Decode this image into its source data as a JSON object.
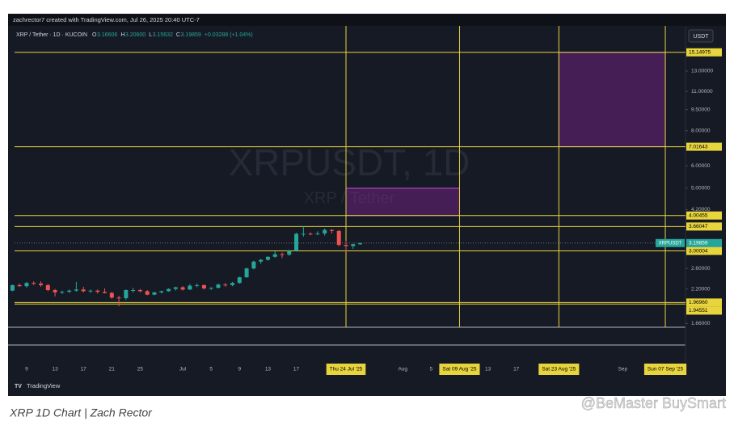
{
  "header": {
    "credit": "zachrector7 created with TradingView.com, Jul 26, 2025 20:40 UTC-7",
    "currency_button": "USDT",
    "brand": "TradingView"
  },
  "caption": "XRP 1D Chart | Zach Rector",
  "watermark": "@BeMaster BuySmart",
  "chart_data": {
    "type": "candlestick",
    "title": "XRP / Tether · 1D · KUCOIN",
    "legend_fields": [
      {
        "key": "O",
        "value": "3.16606"
      },
      {
        "key": "H",
        "value": "3.20600"
      },
      {
        "key": "L",
        "value": "3.15632"
      },
      {
        "key": "C",
        "value": "3.19859"
      }
    ],
    "change": "+0.03288 (+1.04%)",
    "background_symbol": "XRPUSDT, 1D",
    "background_name": "XRP / Tether",
    "price_tag": "XRPUSDT",
    "up_color": "#26a69a",
    "down_color": "#ef5350",
    "level_color": "#e8d43c",
    "zone_color": "#9c27b0",
    "log_scale": true,
    "grid": false,
    "x": [
      "2025-06-07",
      "2025-06-08",
      "2025-06-09",
      "2025-06-10",
      "2025-06-11",
      "2025-06-12",
      "2025-06-13",
      "2025-06-14",
      "2025-06-15",
      "2025-06-16",
      "2025-06-17",
      "2025-06-18",
      "2025-06-19",
      "2025-06-20",
      "2025-06-21",
      "2025-06-22",
      "2025-06-23",
      "2025-06-24",
      "2025-06-25",
      "2025-06-26",
      "2025-06-27",
      "2025-06-28",
      "2025-06-29",
      "2025-06-30",
      "2025-07-01",
      "2025-07-02",
      "2025-07-03",
      "2025-07-04",
      "2025-07-05",
      "2025-07-06",
      "2025-07-07",
      "2025-07-08",
      "2025-07-09",
      "2025-07-10",
      "2025-07-11",
      "2025-07-12",
      "2025-07-13",
      "2025-07-14",
      "2025-07-15",
      "2025-07-16",
      "2025-07-17",
      "2025-07-18",
      "2025-07-19",
      "2025-07-20",
      "2025-07-21",
      "2025-07-22",
      "2025-07-23",
      "2025-07-24",
      "2025-07-25",
      "2025-07-26"
    ],
    "open": [
      2.17,
      2.27,
      2.25,
      2.31,
      2.3,
      2.27,
      2.18,
      2.14,
      2.15,
      2.17,
      2.19,
      2.16,
      2.17,
      2.15,
      2.13,
      2.05,
      2.04,
      2.18,
      2.18,
      2.16,
      2.1,
      2.14,
      2.16,
      2.2,
      2.23,
      2.19,
      2.26,
      2.27,
      2.21,
      2.22,
      2.28,
      2.27,
      2.31,
      2.42,
      2.6,
      2.75,
      2.79,
      2.86,
      2.92,
      2.91,
      3.0,
      3.45,
      3.45,
      3.44,
      3.46,
      3.56,
      3.53,
      3.15,
      3.12,
      3.16606
    ],
    "high": [
      2.28,
      2.3,
      2.33,
      2.34,
      2.34,
      2.29,
      2.2,
      2.17,
      2.19,
      2.33,
      2.24,
      2.19,
      2.19,
      2.21,
      2.15,
      2.08,
      2.19,
      2.22,
      2.2,
      2.18,
      2.15,
      2.17,
      2.21,
      2.24,
      2.25,
      2.29,
      2.3,
      2.28,
      2.23,
      2.3,
      2.31,
      2.33,
      2.43,
      2.62,
      2.77,
      2.81,
      2.87,
      2.99,
      2.96,
      3.03,
      3.48,
      3.66,
      3.49,
      3.52,
      3.6,
      3.58,
      3.56,
      3.26,
      3.18,
      3.206
    ],
    "low": [
      2.16,
      2.24,
      2.22,
      2.27,
      2.24,
      2.16,
      2.07,
      2.11,
      2.13,
      2.15,
      2.14,
      2.13,
      2.12,
      2.12,
      2.03,
      1.91,
      2.01,
      2.14,
      2.14,
      2.09,
      2.09,
      2.12,
      2.15,
      2.17,
      2.17,
      2.18,
      2.23,
      2.19,
      2.18,
      2.21,
      2.24,
      2.25,
      2.3,
      2.41,
      2.58,
      2.7,
      2.77,
      2.84,
      2.83,
      2.88,
      2.98,
      3.37,
      3.41,
      3.41,
      3.4,
      3.46,
      3.12,
      2.98,
      3.05,
      3.15632
    ],
    "close": [
      2.27,
      2.25,
      2.31,
      2.3,
      2.27,
      2.18,
      2.14,
      2.15,
      2.17,
      2.19,
      2.16,
      2.17,
      2.15,
      2.13,
      2.05,
      2.04,
      2.18,
      2.18,
      2.16,
      2.1,
      2.14,
      2.16,
      2.2,
      2.23,
      2.19,
      2.26,
      2.27,
      2.21,
      2.22,
      2.28,
      2.27,
      2.31,
      2.42,
      2.6,
      2.75,
      2.79,
      2.86,
      2.92,
      2.91,
      3.0,
      3.45,
      3.45,
      3.44,
      3.46,
      3.56,
      3.53,
      3.15,
      3.12,
      3.17,
      3.19859
    ],
    "xlim": [
      "2025-06-07",
      "2025-09-09"
    ],
    "xticks": [
      {
        "value": "2025-06-09",
        "label": "9"
      },
      {
        "value": "2025-06-13",
        "label": "13"
      },
      {
        "value": "2025-06-17",
        "label": "17"
      },
      {
        "value": "2025-06-21",
        "label": "21"
      },
      {
        "value": "2025-06-25",
        "label": "25"
      },
      {
        "value": "2025-07-01",
        "label": "Jul"
      },
      {
        "value": "2025-07-05",
        "label": "5"
      },
      {
        "value": "2025-07-09",
        "label": "9"
      },
      {
        "value": "2025-07-13",
        "label": "13"
      },
      {
        "value": "2025-07-17",
        "label": "17"
      },
      {
        "value": "2025-07-24",
        "label": "Thu 24 Jul '25"
      },
      {
        "value": "2025-08-01",
        "label": "Aug"
      },
      {
        "value": "2025-08-05",
        "label": "5"
      },
      {
        "value": "2025-08-09",
        "label": "Sat 09 Aug '25"
      },
      {
        "value": "2025-08-13",
        "label": "13"
      },
      {
        "value": "2025-08-17",
        "label": "17"
      },
      {
        "value": "2025-08-23",
        "label": "Sat 23 Aug '25"
      },
      {
        "value": "2025-09-01",
        "label": "Sep"
      },
      {
        "value": "2025-09-07",
        "label": "Sun 07 Sep '25"
      }
    ],
    "vlines": [
      "2025-07-24",
      "2025-08-09",
      "2025-08-23",
      "2025-09-07"
    ],
    "ylim": [
      1.61,
      18.8
    ],
    "yticks": [
      {
        "value": 13,
        "label": "13.00000"
      },
      {
        "value": 11,
        "label": "11.00000"
      },
      {
        "value": 9.5,
        "label": "9.50000"
      },
      {
        "value": 8,
        "label": "8.00000"
      },
      {
        "value": 6,
        "label": "6.00000"
      },
      {
        "value": 5,
        "label": "5.00000"
      },
      {
        "value": 4.2,
        "label": "4.20000"
      },
      {
        "value": 2.6,
        "label": "2.60000"
      },
      {
        "value": 2.2,
        "label": "2.20000"
      },
      {
        "value": 1.66,
        "label": "1.66000"
      }
    ],
    "levels": [
      15.14975,
      7.01643,
      4.00455,
      3.66047,
      3.00004,
      {
        "value": 1.9696,
        "label": "1.96960"
      },
      1.94551
    ],
    "zones": [
      {
        "x": [
          "2025-07-24",
          "2025-08-09"
        ],
        "y": [
          4.00455,
          5.0
        ]
      },
      {
        "x": [
          "2025-08-23",
          "2025-09-07"
        ],
        "y": [
          7.01643,
          15.14975
        ]
      }
    ]
  }
}
